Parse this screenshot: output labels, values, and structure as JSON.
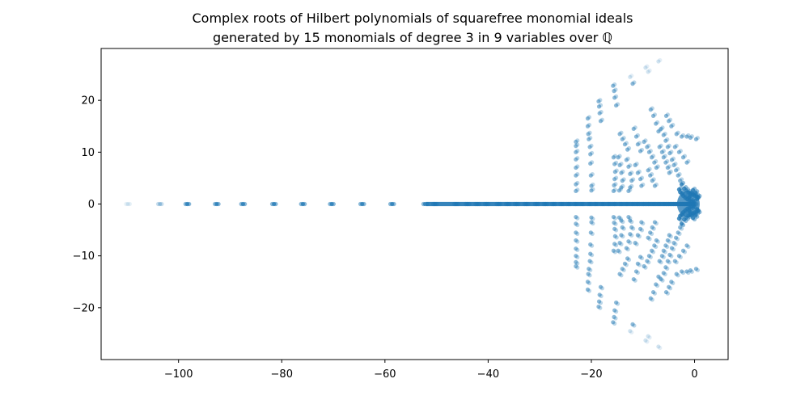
{
  "chart_data": {
    "type": "scatter",
    "title_line1": "Complex roots of Hilbert polynomials of squarefree monomial ideals",
    "title_line2": "generated by 15 monomials of degree 3 in 9 variables over ℚ",
    "xlabel": "",
    "ylabel": "",
    "xlim": [
      -115,
      6.5
    ],
    "ylim": [
      -30,
      30
    ],
    "xticks": [
      -100,
      -80,
      -60,
      -40,
      -20,
      0
    ],
    "yticks": [
      -20,
      -10,
      0,
      10,
      20
    ],
    "xtick_labels": [
      "−100",
      "−80",
      "−60",
      "−40",
      "−20",
      "0"
    ],
    "ytick_labels": [
      "−20",
      "−10",
      "0",
      "10",
      "20"
    ],
    "grid": false,
    "color": "#1f77b4",
    "real_axis_points": [
      -109.8,
      -103.6,
      -98.3,
      -92.6,
      -87.5,
      -81.5,
      -75.9,
      -70.3,
      -64.4,
      -58.6,
      -52.2,
      -50.3,
      -46.2,
      -44.0,
      -42.1,
      -40.3,
      -38.0,
      -36.2,
      -34.5,
      -32.6,
      -30.6,
      -28.9,
      -27.3,
      -25.7,
      -24.4,
      -23.0,
      -21.8,
      -20.3,
      -19.1,
      -17.8,
      -16.6,
      -15.5,
      -14.2,
      -13.1,
      -12.0,
      -11.0,
      -9.9,
      -8.9,
      -7.9,
      -6.9,
      -5.9,
      -5.0,
      -4.1,
      -3.2,
      -2.3,
      -1.5,
      -0.7,
      0.0
    ],
    "complex_points": [
      [
        -23.0,
        12.0
      ],
      [
        -23.0,
        11.2
      ],
      [
        -23.0,
        10.0
      ],
      [
        -23.0,
        8.6
      ],
      [
        -23.0,
        7.0
      ],
      [
        -23.0,
        5.5
      ],
      [
        -23.0,
        3.8
      ],
      [
        -23.0,
        2.5
      ],
      [
        -20.7,
        16.5
      ],
      [
        -20.7,
        15.0
      ],
      [
        -20.6,
        13.5
      ],
      [
        -20.5,
        12.5
      ],
      [
        -20.3,
        11.0
      ],
      [
        -20.2,
        9.6
      ],
      [
        -20.2,
        7.8
      ],
      [
        -20.1,
        5.5
      ],
      [
        -20.0,
        3.5
      ],
      [
        -20.0,
        2.6
      ],
      [
        -18.6,
        19.8
      ],
      [
        -18.5,
        18.8
      ],
      [
        -18.4,
        17.5
      ],
      [
        -18.2,
        16.0
      ],
      [
        -15.8,
        22.8
      ],
      [
        -15.6,
        21.8
      ],
      [
        -15.5,
        20.5
      ],
      [
        -15.2,
        19.0
      ],
      [
        -15.7,
        9.0
      ],
      [
        -15.5,
        7.7
      ],
      [
        -15.4,
        6.2
      ],
      [
        -15.5,
        4.8
      ],
      [
        -15.6,
        3.6
      ],
      [
        -15.7,
        2.5
      ],
      [
        -14.5,
        13.5
      ],
      [
        -14.0,
        12.5
      ],
      [
        -13.5,
        11.5
      ],
      [
        -13.0,
        10.5
      ],
      [
        -14.8,
        9.0
      ],
      [
        -14.5,
        7.5
      ],
      [
        -14.2,
        6.0
      ],
      [
        -14.0,
        4.5
      ],
      [
        -14.2,
        3.2
      ],
      [
        -14.6,
        2.6
      ],
      [
        -13.2,
        8.5
      ],
      [
        -12.8,
        7.2
      ],
      [
        -12.5,
        5.8
      ],
      [
        -12.2,
        4.5
      ],
      [
        -12.5,
        3.2
      ],
      [
        -12.8,
        2.5
      ],
      [
        -12.5,
        24.5
      ],
      [
        -12.0,
        23.2
      ],
      [
        -11.8,
        14.5
      ],
      [
        -11.3,
        13.0
      ],
      [
        -11.0,
        11.5
      ],
      [
        -10.5,
        10.2
      ],
      [
        -11.5,
        7.5
      ],
      [
        -11.0,
        6.0
      ],
      [
        -10.5,
        4.8
      ],
      [
        -10.3,
        3.5
      ],
      [
        -9.5,
        26.3
      ],
      [
        -9.0,
        25.5
      ],
      [
        -8.5,
        18.2
      ],
      [
        -8.0,
        17.0
      ],
      [
        -7.5,
        15.5
      ],
      [
        -7.0,
        14.0
      ],
      [
        -9.8,
        12.0
      ],
      [
        -9.2,
        11.0
      ],
      [
        -8.8,
        10.0
      ],
      [
        -8.3,
        9.0
      ],
      [
        -7.8,
        8.0
      ],
      [
        -7.4,
        7.0
      ],
      [
        -9.0,
        6.5
      ],
      [
        -8.6,
        5.5
      ],
      [
        -8.2,
        4.5
      ],
      [
        -7.7,
        3.5
      ],
      [
        -6.5,
        14.5
      ],
      [
        -6.0,
        13.3
      ],
      [
        -5.6,
        12.2
      ],
      [
        -5.2,
        11.0
      ],
      [
        -4.8,
        9.8
      ],
      [
        -4.4,
        8.5
      ],
      [
        -6.8,
        11.0
      ],
      [
        -6.3,
        10.0
      ],
      [
        -6.0,
        9.0
      ],
      [
        -5.6,
        8.0
      ],
      [
        -5.2,
        7.0
      ],
      [
        -4.9,
        6.0
      ],
      [
        -5.5,
        17.0
      ],
      [
        -5.0,
        16.0
      ],
      [
        -4.5,
        15.0
      ],
      [
        -7.0,
        27.5
      ],
      [
        -3.5,
        13.5
      ],
      [
        -2.5,
        13.0
      ],
      [
        -1.5,
        13.0
      ],
      [
        -0.8,
        12.8
      ],
      [
        0.3,
        12.5
      ],
      [
        -4.0,
        7.5
      ],
      [
        -3.6,
        6.5
      ],
      [
        -3.2,
        5.5
      ],
      [
        -2.8,
        4.5
      ],
      [
        -2.5,
        3.8
      ],
      [
        -3.8,
        11.0
      ],
      [
        -3.0,
        10.0
      ],
      [
        -2.2,
        9.0
      ],
      [
        -1.5,
        8.0
      ],
      [
        -2.0,
        3.0
      ],
      [
        -1.6,
        2.6
      ],
      [
        -1.2,
        2.2
      ],
      [
        -0.8,
        2.0
      ],
      [
        -0.4,
        1.8
      ],
      [
        0.0,
        1.6
      ],
      [
        0.4,
        1.5
      ],
      [
        0.7,
        1.3
      ],
      [
        -2.5,
        2.0
      ],
      [
        -2.2,
        1.6
      ],
      [
        -1.8,
        1.2
      ],
      [
        -1.4,
        0.9
      ],
      [
        -1.0,
        0.7
      ],
      [
        -0.6,
        0.5
      ],
      [
        -0.2,
        0.4
      ],
      [
        -3.0,
        2.8
      ],
      [
        -2.8,
        2.3
      ],
      [
        -0.3,
        2.7
      ],
      [
        0.2,
        2.2
      ],
      [
        0.5,
        1.0
      ],
      [
        -1.0,
        1.4
      ]
    ]
  }
}
